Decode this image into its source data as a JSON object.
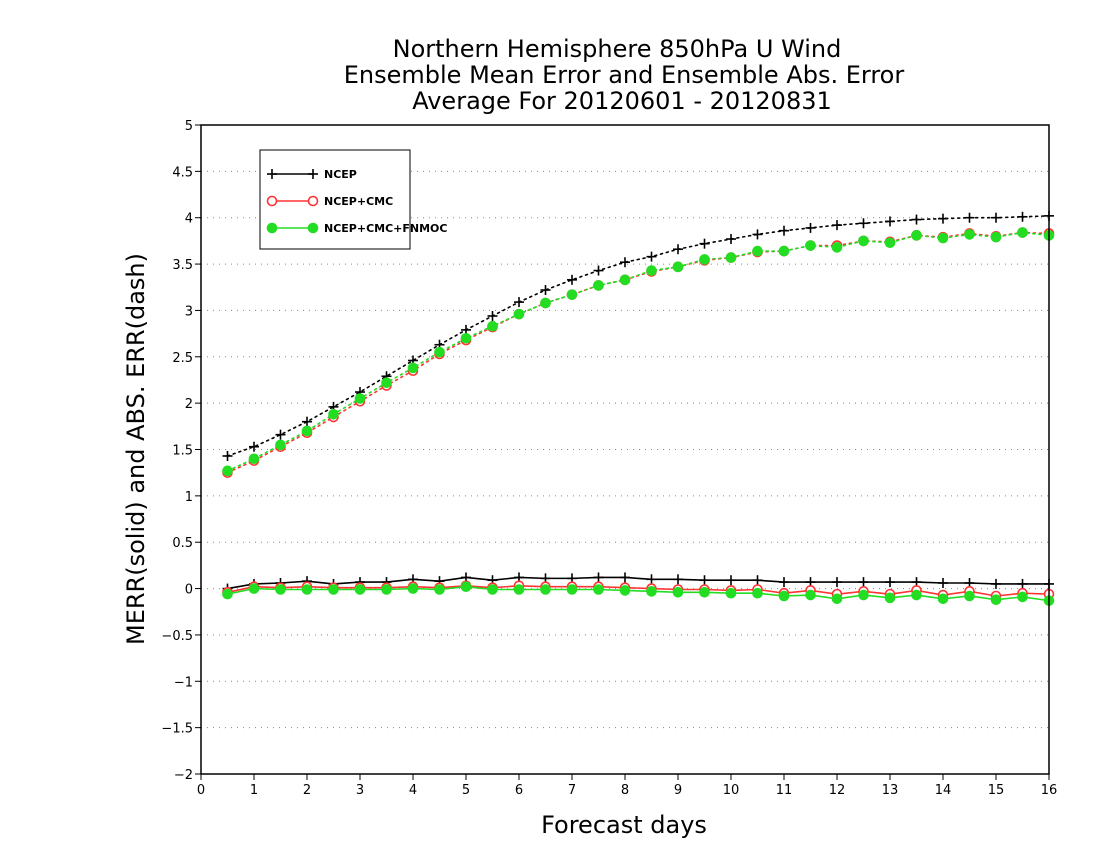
{
  "chart_data": {
    "type": "line",
    "title": [
      "Northern Hemisphere 850hPa U Wind",
      "Ensemble Mean Error and Ensemble Abs. Error",
      "Average For 20120601 - 20120831"
    ],
    "xlabel": "Forecast days",
    "ylabel": "MERR(solid) and ABS. ERR(dash)",
    "xlim": [
      0,
      16
    ],
    "ylim": [
      -2,
      5
    ],
    "xticks": [
      0,
      1,
      2,
      3,
      4,
      5,
      6,
      7,
      8,
      9,
      10,
      11,
      12,
      13,
      14,
      15,
      16
    ],
    "yticks": [
      -2,
      -1.5,
      -1,
      -0.5,
      0,
      0.5,
      1,
      1.5,
      2,
      2.5,
      3,
      3.5,
      4,
      4.5,
      5
    ],
    "grid": "horizontal dotted",
    "legend_position": "top-left",
    "x": [
      0.5,
      1,
      1.5,
      2,
      2.5,
      3,
      3.5,
      4,
      4.5,
      5,
      5.5,
      6,
      6.5,
      7,
      7.5,
      8,
      8.5,
      9,
      9.5,
      10,
      10.5,
      11,
      11.5,
      12,
      12.5,
      13,
      13.5,
      14,
      14.5,
      15,
      15.5,
      16
    ],
    "series": [
      {
        "name": "NCEP",
        "color": "#000000",
        "marker": "plus",
        "abs_err": [
          1.43,
          1.53,
          1.66,
          1.8,
          1.96,
          2.12,
          2.29,
          2.46,
          2.63,
          2.79,
          2.94,
          3.09,
          3.22,
          3.33,
          3.43,
          3.52,
          3.58,
          3.66,
          3.72,
          3.77,
          3.82,
          3.86,
          3.89,
          3.92,
          3.94,
          3.96,
          3.98,
          3.99,
          4.0,
          4.0,
          4.01,
          4.02
        ],
        "mean_err": [
          0.0,
          0.05,
          0.06,
          0.08,
          0.05,
          0.07,
          0.07,
          0.1,
          0.08,
          0.12,
          0.09,
          0.12,
          0.11,
          0.11,
          0.12,
          0.12,
          0.1,
          0.1,
          0.09,
          0.09,
          0.09,
          0.07,
          0.07,
          0.07,
          0.07,
          0.07,
          0.07,
          0.06,
          0.06,
          0.05,
          0.05,
          0.05
        ]
      },
      {
        "name": "NCEP+CMC",
        "color": "#ff3333",
        "marker": "open-circle",
        "abs_err": [
          1.25,
          1.38,
          1.53,
          1.68,
          1.85,
          2.02,
          2.19,
          2.35,
          2.53,
          2.68,
          2.82,
          2.96,
          3.08,
          3.17,
          3.27,
          3.33,
          3.42,
          3.47,
          3.54,
          3.57,
          3.63,
          3.64,
          3.7,
          3.7,
          3.75,
          3.74,
          3.81,
          3.79,
          3.83,
          3.8,
          3.84,
          3.83
        ],
        "mean_err": [
          -0.04,
          0.02,
          0.01,
          0.02,
          0.01,
          0.01,
          0.01,
          0.02,
          0.01,
          0.03,
          0.01,
          0.03,
          0.02,
          0.02,
          0.02,
          0.01,
          0.0,
          -0.01,
          -0.01,
          -0.02,
          -0.01,
          -0.05,
          -0.02,
          -0.06,
          -0.03,
          -0.06,
          -0.02,
          -0.07,
          -0.03,
          -0.08,
          -0.05,
          -0.06
        ]
      },
      {
        "name": "NCEP+CMC+FNMOC",
        "color": "#22dd22",
        "marker": "filled-circle",
        "abs_err": [
          1.27,
          1.4,
          1.55,
          1.7,
          1.88,
          2.05,
          2.22,
          2.38,
          2.55,
          2.7,
          2.83,
          2.96,
          3.08,
          3.17,
          3.27,
          3.33,
          3.43,
          3.47,
          3.55,
          3.57,
          3.64,
          3.64,
          3.7,
          3.68,
          3.75,
          3.73,
          3.81,
          3.78,
          3.82,
          3.79,
          3.84,
          3.81
        ],
        "mean_err": [
          -0.06,
          0.0,
          -0.01,
          -0.01,
          -0.01,
          -0.01,
          -0.01,
          0.0,
          -0.01,
          0.02,
          -0.01,
          -0.01,
          -0.01,
          -0.01,
          -0.01,
          -0.02,
          -0.03,
          -0.04,
          -0.04,
          -0.05,
          -0.05,
          -0.08,
          -0.07,
          -0.11,
          -0.07,
          -0.1,
          -0.07,
          -0.11,
          -0.08,
          -0.12,
          -0.09,
          -0.13
        ]
      }
    ]
  }
}
